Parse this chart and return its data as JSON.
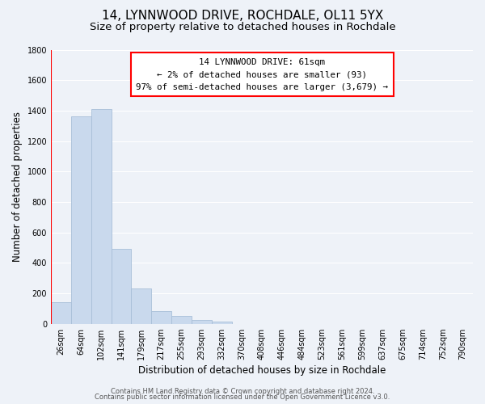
{
  "title": "14, LYNNWOOD DRIVE, ROCHDALE, OL11 5YX",
  "subtitle": "Size of property relative to detached houses in Rochdale",
  "xlabel": "Distribution of detached houses by size in Rochdale",
  "ylabel": "Number of detached properties",
  "bar_labels": [
    "26sqm",
    "64sqm",
    "102sqm",
    "141sqm",
    "179sqm",
    "217sqm",
    "255sqm",
    "293sqm",
    "332sqm",
    "370sqm",
    "408sqm",
    "446sqm",
    "484sqm",
    "523sqm",
    "561sqm",
    "599sqm",
    "637sqm",
    "675sqm",
    "714sqm",
    "752sqm",
    "790sqm"
  ],
  "bar_heights": [
    140,
    1360,
    1410,
    490,
    230,
    85,
    50,
    25,
    15,
    0,
    0,
    0,
    0,
    0,
    0,
    0,
    0,
    0,
    0,
    0,
    0
  ],
  "bar_color": "#c9d9ed",
  "bar_edge_color": "#a8bfd8",
  "ylim": [
    0,
    1800
  ],
  "yticks": [
    0,
    200,
    400,
    600,
    800,
    1000,
    1200,
    1400,
    1600,
    1800
  ],
  "annotation_title": "14 LYNNWOOD DRIVE: 61sqm",
  "annotation_line1": "← 2% of detached houses are smaller (93)",
  "annotation_line2": "97% of semi-detached houses are larger (3,679) →",
  "footer_line1": "Contains HM Land Registry data © Crown copyright and database right 2024.",
  "footer_line2": "Contains public sector information licensed under the Open Government Licence v3.0.",
  "background_color": "#eef2f8",
  "plot_background_color": "#eef2f8",
  "grid_color": "#ffffff",
  "title_fontsize": 11,
  "subtitle_fontsize": 9.5,
  "axis_label_fontsize": 8.5,
  "tick_fontsize": 7,
  "footer_fontsize": 6,
  "annotation_fontsize": 7.8
}
